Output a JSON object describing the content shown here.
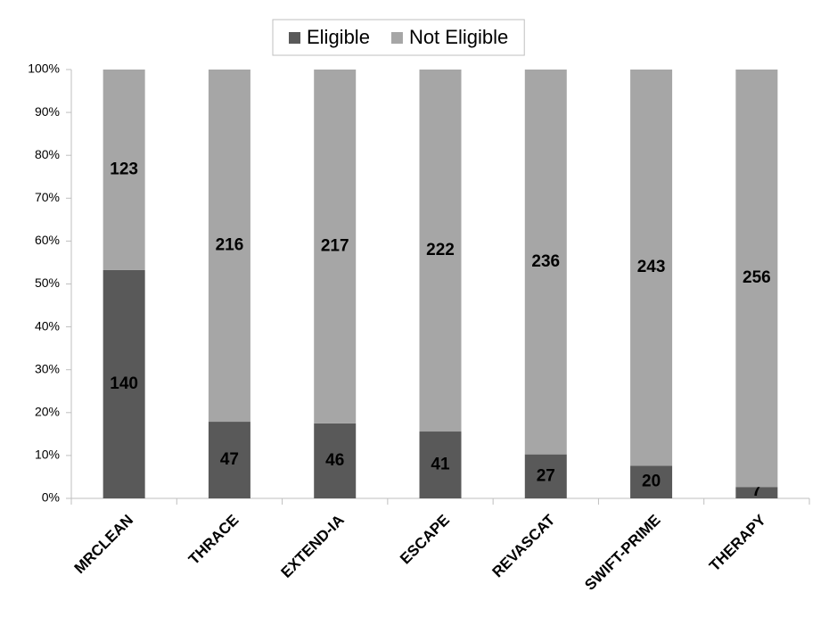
{
  "chart_data": {
    "type": "bar",
    "stack": "percent",
    "categories": [
      "MRCLEAN",
      "THRACE",
      "EXTEND-IA",
      "ESCAPE",
      "REVASCAT",
      "SWIFT-PRIME",
      "THERAPY"
    ],
    "series": [
      {
        "name": "Eligible",
        "color": "#595959",
        "values": [
          140,
          47,
          46,
          41,
          27,
          20,
          7
        ]
      },
      {
        "name": "Not Eligible",
        "color": "#a6a6a6",
        "values": [
          123,
          216,
          217,
          222,
          236,
          243,
          256
        ]
      }
    ],
    "ylim": [
      0,
      100
    ],
    "yticks": [
      {
        "value": 0,
        "label": "0%"
      },
      {
        "value": 10,
        "label": "10%"
      },
      {
        "value": 20,
        "label": "20%"
      },
      {
        "value": 30,
        "label": "30%"
      },
      {
        "value": 40,
        "label": "40%"
      },
      {
        "value": 50,
        "label": "50%"
      },
      {
        "value": 60,
        "label": "60%"
      },
      {
        "value": 70,
        "label": "70%"
      },
      {
        "value": 80,
        "label": "80%"
      },
      {
        "value": 90,
        "label": "90%"
      },
      {
        "value": 100,
        "label": "100%"
      }
    ],
    "legend": "top",
    "grid": false
  }
}
